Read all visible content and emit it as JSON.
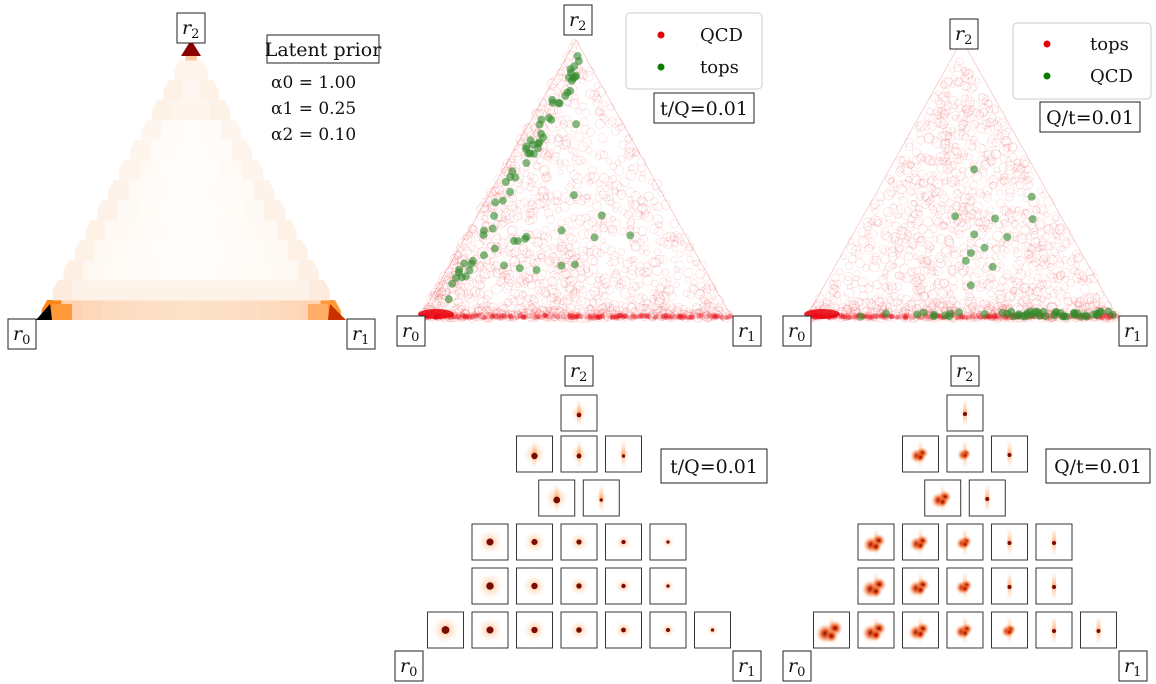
{
  "vertex_labels": {
    "r0": {
      "base": "r",
      "sub": "0"
    },
    "r1": {
      "base": "r",
      "sub": "1"
    },
    "r2": {
      "base": "r",
      "sub": "2"
    }
  },
  "colors": {
    "qcd": "#e8000b",
    "tops": "#0a7d00",
    "prior_max": "#000000",
    "prior_high": "#8b0000",
    "prior_mid": "#ff8c1a",
    "prior_low": "#fff5eb"
  },
  "chart_data": [
    {
      "type": "heatmap",
      "panel": "latent-prior",
      "title": "Latent prior",
      "params": [
        {
          "label": "α0 = 1.00",
          "name": "alpha_0",
          "value": 1.0
        },
        {
          "label": "α1 = 0.25",
          "name": "alpha_1",
          "value": 0.25
        },
        {
          "label": "α2 = 0.10",
          "name": "alpha_2",
          "value": 0.1
        }
      ],
      "grid_cells": 14,
      "corner_density": {
        "r0": 1.0,
        "r1": 0.75,
        "r2": 0.9
      }
    },
    {
      "type": "scatter",
      "panel": "simplex-t-over-q",
      "annotation": "t/Q=0.01",
      "legend": [
        {
          "name": "QCD",
          "color": "#e8000b"
        },
        {
          "name": "tops",
          "color": "#0a7d00"
        }
      ],
      "legend_placement": "top-right",
      "series_cloud": "QCD",
      "series_points": "tops",
      "concentration": "r0-r1 edge and r0-r2 edge"
    },
    {
      "type": "scatter",
      "panel": "simplex-q-over-t",
      "annotation": "Q/t=0.01",
      "legend": [
        {
          "name": "tops",
          "color": "#e8000b"
        },
        {
          "name": "QCD",
          "color": "#0a7d00"
        }
      ],
      "legend_placement": "top-right",
      "series_cloud": "tops",
      "series_points": "QCD",
      "concentration": "r0-r1 edge"
    },
    {
      "type": "heatmap",
      "panel": "decoded-jets-t-over-q",
      "annotation": "t/Q=0.01",
      "rows": [
        1,
        3,
        2,
        5,
        5,
        7
      ]
    },
    {
      "type": "heatmap",
      "panel": "decoded-jets-q-over-t",
      "annotation": "Q/t=0.01",
      "rows": [
        1,
        3,
        2,
        5,
        5,
        7
      ]
    }
  ]
}
